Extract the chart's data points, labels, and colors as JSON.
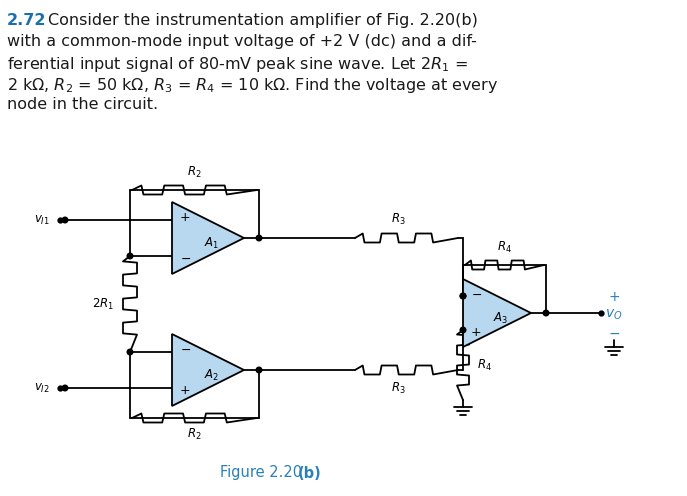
{
  "bg_color": "#ffffff",
  "text_color": "#1a1a1a",
  "blue_number_color": "#1a6faf",
  "light_blue_fill": "#b8d8f0",
  "circuit_color": "#000000",
  "figure_caption_color": "#2980b9",
  "problem_number": "2.72",
  "figure_caption_plain": "Figure 2.20 ",
  "figure_caption_bold": "(b)"
}
